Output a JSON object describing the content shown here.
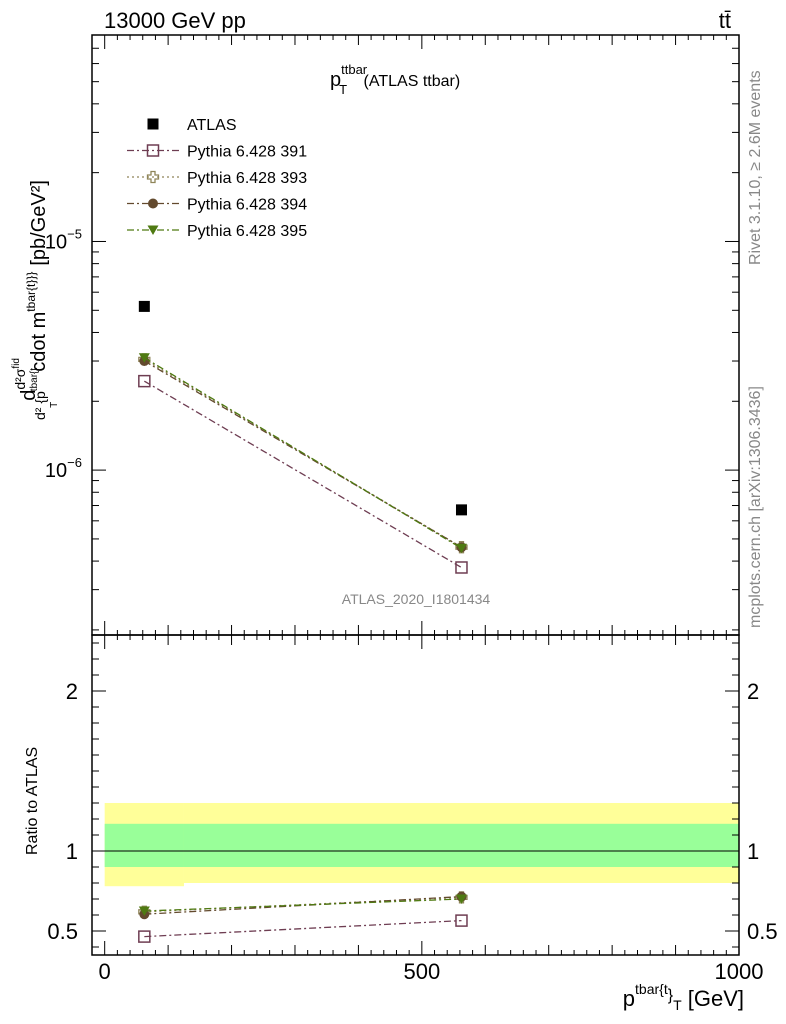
{
  "header": {
    "left": "13000 GeV pp",
    "right": "tt̄"
  },
  "side_labels": {
    "rivet": "Rivet 3.1.10, ≥ 2.6M events",
    "mcplots": "mcplots.cern.ch [arXiv:1306.3436]"
  },
  "watermark": "ATLAS_2020_I1801434",
  "colors": {
    "atlas": "#000000",
    "p391": "#6e3d52",
    "p393": "#8f8559",
    "p394": "#634a2e",
    "p395": "#4f7a12",
    "band_inner": "#99ff99",
    "band_outer": "#ffff99"
  },
  "chart_data": [
    {
      "type": "scatter",
      "title_main": "p",
      "title_sup": "ttbar",
      "title_sub": "T",
      "title_suffix": " (ATLAS ttbar)",
      "ylabel": "d d²σ^{fid} / d² {p^{tbar{t}}_T cdot m^{tbar{t}}}} [pb/GeV²]",
      "ylabel_parts": {
        "d": "d",
        "num": "d²σ",
        "num_sup": "fid",
        "den": "d² {p",
        "den_sup": "tbar{t",
        "den_sub": "T",
        "rest": "cdot m",
        "rest_sup": "tbar{t}}}",
        "unit": "[pb/GeV²]"
      },
      "yscale": "log",
      "ylim": [
        1.9e-07,
        8e-05
      ],
      "yticks": [
        {
          "value": 1e-06,
          "label": "10",
          "exp": "−6"
        },
        {
          "value": 1e-05,
          "label": "10",
          "exp": "−5"
        }
      ],
      "xlim": [
        -20,
        1000
      ],
      "legend_position": "top-left",
      "series": [
        {
          "name": "ATLAS",
          "marker": "square-filled",
          "line": "none",
          "x": [
            62.5,
            562.5
          ],
          "y": [
            5.2e-06,
            6.7e-07
          ]
        },
        {
          "name": "Pythia 6.428 391",
          "marker": "square-open",
          "line": "dashdot",
          "x": [
            62.5,
            562.5
          ],
          "y": [
            2.45e-06,
            3.75e-07
          ]
        },
        {
          "name": "Pythia 6.428 393",
          "marker": "cross-open",
          "line": "dotted",
          "x": [
            62.5,
            562.5
          ],
          "y": [
            3.05e-06,
            4.6e-07
          ]
        },
        {
          "name": "Pythia 6.428 394",
          "marker": "circle-filled",
          "line": "dashdot",
          "x": [
            62.5,
            562.5
          ],
          "y": [
            3e-06,
            4.6e-07
          ]
        },
        {
          "name": "Pythia 6.428 395",
          "marker": "triangle-down-filled",
          "line": "dashdot",
          "x": [
            62.5,
            562.5
          ],
          "y": [
            3.1e-06,
            4.55e-07
          ]
        }
      ]
    },
    {
      "type": "scatter",
      "ylabel": "Ratio to ATLAS",
      "yscale": "linear",
      "ylim": [
        0.35,
        2.35
      ],
      "yticks": [
        {
          "value": 0.5,
          "label": "0.5"
        },
        {
          "value": 1,
          "label": "1"
        },
        {
          "value": 2,
          "label": "2"
        }
      ],
      "xlim": [
        -20,
        1000
      ],
      "xticks": [
        {
          "value": 0,
          "label": "0"
        },
        {
          "value": 500,
          "label": "500"
        },
        {
          "value": 1000,
          "label": "1000"
        }
      ],
      "xlabel": "p^{tbar{t}}_T [GeV]",
      "xlabel_parts": {
        "main": "p",
        "sup": "tbar{t",
        "bracket": "}",
        "sub": "T",
        "unit": " [GeV]"
      },
      "bands": {
        "outer": [
          {
            "x0": 0,
            "x1": 125,
            "lo": 0.78,
            "hi": 1.3
          },
          {
            "x0": 125,
            "x1": 1000,
            "lo": 0.8,
            "hi": 1.3
          }
        ],
        "inner": [
          {
            "x0": 0,
            "x1": 125,
            "lo": 0.9,
            "hi": 1.17
          },
          {
            "x0": 125,
            "x1": 1000,
            "lo": 0.9,
            "hi": 1.17
          }
        ]
      },
      "series": [
        {
          "name": "Pythia 6.428 391",
          "marker": "square-open",
          "line": "dashdot",
          "x": [
            62.5,
            562.5
          ],
          "y": [
            0.465,
            0.565
          ]
        },
        {
          "name": "Pythia 6.428 393",
          "marker": "cross-open",
          "line": "dotted",
          "x": [
            62.5,
            562.5
          ],
          "y": [
            0.62,
            0.71
          ]
        },
        {
          "name": "Pythia 6.428 394",
          "marker": "circle-filled",
          "line": "dashdot",
          "x": [
            62.5,
            562.5
          ],
          "y": [
            0.605,
            0.715
          ]
        },
        {
          "name": "Pythia 6.428 395",
          "marker": "triangle-down-filled",
          "line": "dashdot",
          "x": [
            62.5,
            562.5
          ],
          "y": [
            0.625,
            0.7
          ]
        }
      ]
    }
  ]
}
